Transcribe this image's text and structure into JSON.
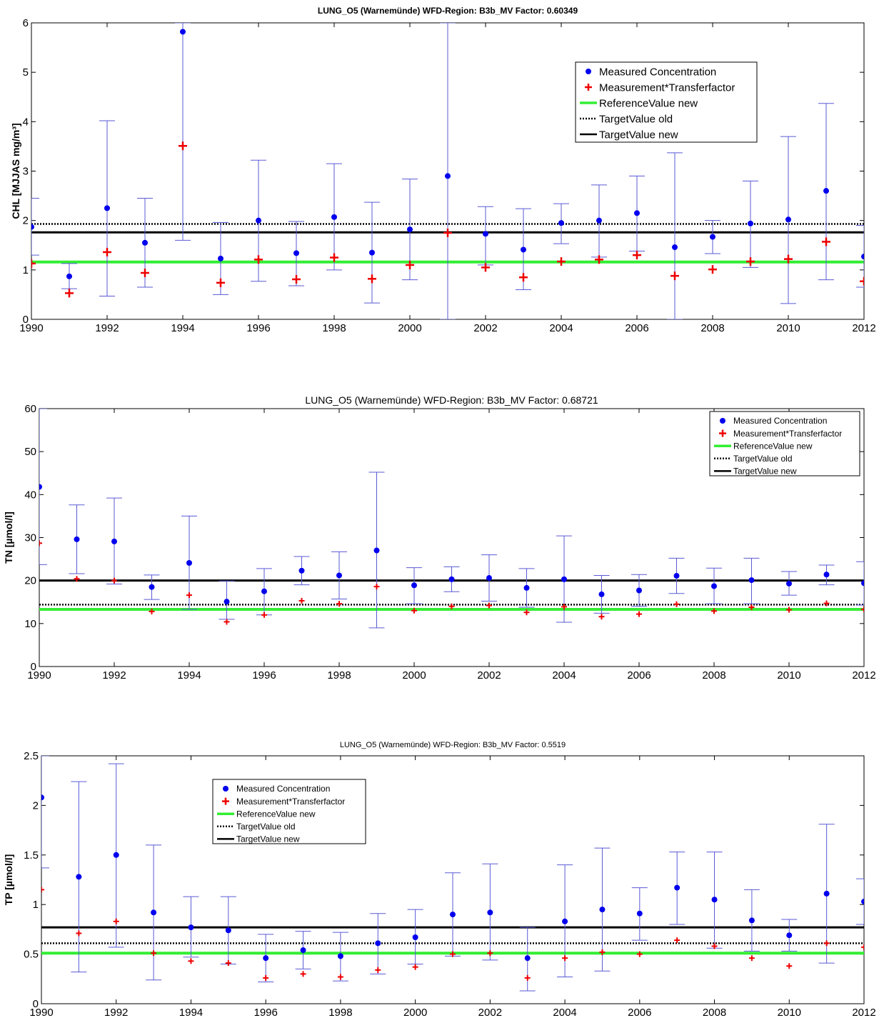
{
  "chart_data": [
    {
      "type": "scatter",
      "title": "LUNG_O5 (Warnemünde) WFD-Region: B3b_MV Factor: 0.60349",
      "xlabel": "",
      "ylabel": "CHL [MJJAS mg/m³]",
      "xlim": [
        1990,
        2012
      ],
      "ylim": [
        0,
        6
      ],
      "xticks": [
        "1990",
        "1992",
        "1994",
        "1996",
        "1998",
        "2000",
        "2002",
        "2004",
        "2006",
        "2008",
        "2010",
        "2012"
      ],
      "yticks": [
        "0",
        "1",
        "2",
        "3",
        "4",
        "5",
        "6"
      ],
      "legend_position": "top-right",
      "x": [
        1990,
        1991,
        1992,
        1993,
        1994,
        1995,
        1996,
        1997,
        1998,
        1999,
        2000,
        2001,
        2002,
        2003,
        2004,
        2005,
        2006,
        2007,
        2008,
        2009,
        2010,
        2011,
        2012
      ],
      "series": [
        {
          "name": "Measured Concentration",
          "marker": "dot",
          "color": "#0000ee",
          "values": [
            1.87,
            0.87,
            2.25,
            1.55,
            5.82,
            1.23,
            2.0,
            1.34,
            2.07,
            1.35,
            1.82,
            2.9,
            1.73,
            1.41,
            1.95,
            2.0,
            2.15,
            1.46,
            1.67,
            1.94,
            2.02,
            2.6,
            1.27
          ],
          "error_low": [
            1.3,
            0.62,
            0.47,
            0.65,
            1.6,
            0.5,
            0.77,
            0.68,
            1.0,
            0.33,
            0.8,
            0.0,
            1.1,
            0.6,
            1.53,
            1.26,
            1.38,
            0.0,
            1.33,
            1.05,
            0.32,
            0.8,
            0.65
          ],
          "error_high": [
            2.45,
            1.13,
            4.02,
            2.45,
            6.0,
            1.96,
            3.22,
            1.98,
            3.15,
            2.37,
            2.84,
            6.0,
            2.28,
            2.24,
            2.34,
            2.72,
            2.9,
            3.37,
            2.0,
            2.8,
            3.7,
            4.37,
            1.9
          ]
        },
        {
          "name": "Measurement*Transferfactor",
          "marker": "plus",
          "color": "#ee0000",
          "values": [
            1.13,
            0.53,
            1.36,
            0.94,
            3.51,
            0.74,
            1.21,
            0.81,
            1.25,
            0.82,
            1.1,
            1.75,
            1.05,
            0.85,
            1.17,
            1.21,
            1.3,
            0.88,
            1.01,
            1.17,
            1.22,
            1.57,
            0.77
          ]
        }
      ],
      "reference_lines": [
        {
          "name": "ReferenceValue new",
          "value": 1.16,
          "color": "#33ee33",
          "style": "solid"
        },
        {
          "name": "TargetValue old",
          "value": 1.93,
          "color": "#000000",
          "style": "dotted"
        },
        {
          "name": "TargetValue new",
          "value": 1.76,
          "color": "#000000",
          "style": "solid"
        }
      ]
    },
    {
      "type": "scatter",
      "title": "LUNG_O5 (Warnemünde) WFD-Region: B3b_MV Factor: 0.68721",
      "xlabel": "",
      "ylabel": "TN [µmol/l]",
      "xlim": [
        1990,
        2012
      ],
      "ylim": [
        0,
        60
      ],
      "xticks": [
        "1990",
        "1992",
        "1994",
        "1996",
        "1998",
        "2000",
        "2002",
        "2004",
        "2006",
        "2008",
        "2010",
        "2012"
      ],
      "yticks": [
        "0",
        "10",
        "20",
        "30",
        "40",
        "50",
        "60"
      ],
      "legend_position": "top-right",
      "x": [
        1990,
        1991,
        1992,
        1993,
        1994,
        1995,
        1996,
        1997,
        1998,
        1999,
        2000,
        2001,
        2002,
        2003,
        2004,
        2005,
        2006,
        2007,
        2008,
        2009,
        2010,
        2011,
        2012
      ],
      "series": [
        {
          "name": "Measured Concentration",
          "marker": "dot",
          "color": "#0000ee",
          "values": [
            41.8,
            29.6,
            29.1,
            18.5,
            24.1,
            15.1,
            17.5,
            22.3,
            21.2,
            27.0,
            18.9,
            20.3,
            20.6,
            18.3,
            20.3,
            16.8,
            17.7,
            21.1,
            18.7,
            20.1,
            19.3,
            21.4,
            19.4
          ],
          "error_low": [
            23.7,
            21.6,
            19.2,
            15.6,
            13.3,
            11.0,
            12.0,
            19.0,
            15.7,
            9.0,
            14.6,
            17.4,
            15.2,
            13.8,
            10.3,
            12.4,
            14.0,
            17.0,
            14.6,
            14.6,
            16.6,
            19.0,
            14.3
          ],
          "error_high": [
            60.0,
            37.6,
            39.2,
            21.3,
            35.0,
            19.9,
            22.8,
            25.6,
            26.7,
            45.2,
            23.0,
            23.2,
            26.0,
            22.8,
            30.4,
            21.2,
            21.4,
            25.2,
            22.9,
            25.2,
            22.1,
            23.6,
            24.4
          ]
        },
        {
          "name": "Measurement*Transferfactor",
          "marker": "plus",
          "color": "#ee0000",
          "values": [
            28.7,
            20.4,
            20.0,
            12.8,
            16.6,
            10.4,
            12.0,
            15.3,
            14.6,
            18.6,
            13.0,
            14.0,
            14.2,
            12.6,
            13.9,
            11.6,
            12.2,
            14.5,
            12.9,
            13.8,
            13.2,
            14.7,
            13.3
          ]
        }
      ],
      "reference_lines": [
        {
          "name": "ReferenceValue new",
          "value": 13.3,
          "color": "#33ee33",
          "style": "solid"
        },
        {
          "name": "TargetValue old",
          "value": 14.4,
          "color": "#000000",
          "style": "dotted"
        },
        {
          "name": "TargetValue new",
          "value": 20.0,
          "color": "#000000",
          "style": "solid"
        }
      ]
    },
    {
      "type": "scatter",
      "title": "LUNG_O5 (Warnemünde) WFD-Region: B3b_MV Factor: 0.5519",
      "xlabel": "",
      "ylabel": "TP [µmol/l]",
      "xlim": [
        1990,
        2012
      ],
      "ylim": [
        0,
        2.5
      ],
      "xticks": [
        "1990",
        "1992",
        "1994",
        "1996",
        "1998",
        "2000",
        "2002",
        "2004",
        "2006",
        "2008",
        "2010",
        "2012"
      ],
      "yticks": [
        "0",
        "0.5",
        "1",
        "1.5",
        "2",
        "2.5"
      ],
      "legend_position": "top-left",
      "x": [
        1990,
        1991,
        1992,
        1993,
        1994,
        1995,
        1996,
        1997,
        1998,
        1999,
        2000,
        2001,
        2002,
        2003,
        2004,
        2005,
        2006,
        2007,
        2008,
        2009,
        2010,
        2011,
        2012
      ],
      "series": [
        {
          "name": "Measured Concentration",
          "marker": "dot",
          "color": "#0000ee",
          "values": [
            2.08,
            1.28,
            1.5,
            0.92,
            0.77,
            0.74,
            0.46,
            0.54,
            0.48,
            0.61,
            0.67,
            0.9,
            0.92,
            0.46,
            0.83,
            0.95,
            0.91,
            1.17,
            1.05,
            0.84,
            0.69,
            1.11,
            1.03
          ],
          "error_low": [
            1.37,
            0.32,
            0.57,
            0.24,
            0.47,
            0.4,
            0.22,
            0.35,
            0.23,
            0.3,
            0.4,
            0.48,
            0.44,
            0.13,
            0.27,
            0.33,
            0.64,
            0.8,
            0.56,
            0.53,
            0.53,
            0.41,
            0.8
          ],
          "error_high": [
            2.5,
            2.24,
            2.42,
            1.6,
            1.08,
            1.08,
            0.7,
            0.73,
            0.72,
            0.91,
            0.95,
            1.32,
            1.41,
            0.77,
            1.4,
            1.57,
            1.17,
            1.53,
            1.53,
            1.15,
            0.85,
            1.81,
            1.26
          ]
        },
        {
          "name": "Measurement*Transferfactor",
          "marker": "plus",
          "color": "#ee0000",
          "values": [
            1.15,
            0.71,
            0.83,
            0.51,
            0.43,
            0.41,
            0.26,
            0.3,
            0.27,
            0.34,
            0.37,
            0.5,
            0.51,
            0.26,
            0.46,
            0.52,
            0.5,
            0.64,
            0.58,
            0.46,
            0.38,
            0.61,
            0.57
          ]
        }
      ],
      "reference_lines": [
        {
          "name": "ReferenceValue new",
          "value": 0.51,
          "color": "#33ee33",
          "style": "solid"
        },
        {
          "name": "TargetValue old",
          "value": 0.61,
          "color": "#000000",
          "style": "dotted"
        },
        {
          "name": "TargetValue new",
          "value": 0.77,
          "color": "#000000",
          "style": "solid"
        }
      ]
    }
  ]
}
